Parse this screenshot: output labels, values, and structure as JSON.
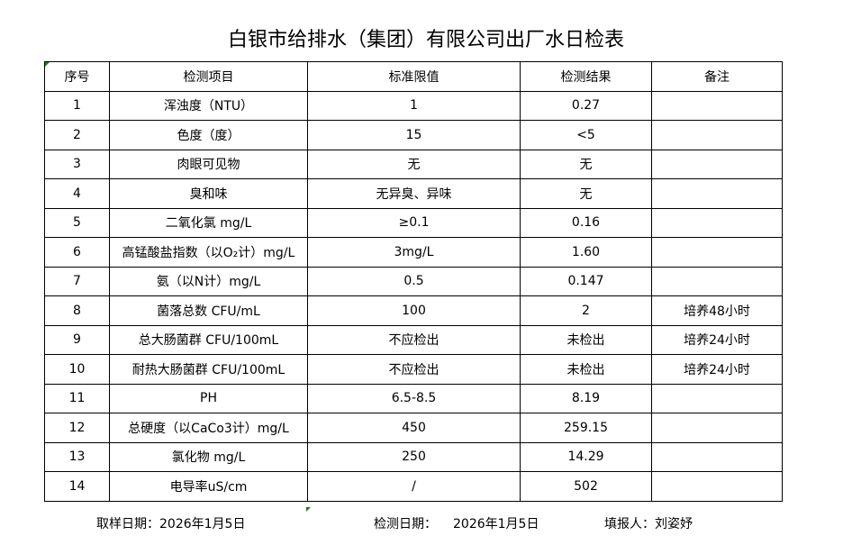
{
  "title": "白银市给排水（集团）有限公司出厂水日检表",
  "headers": [
    "序号",
    "检测项目",
    "标准限值",
    "检测结果",
    "备注"
  ],
  "rows": [
    [
      "1",
      "浑浊度（NTU）",
      "1",
      "0.27",
      ""
    ],
    [
      "2",
      "色度（度）",
      "15",
      "<5",
      ""
    ],
    [
      "3",
      "肉眼可见物",
      "无",
      "无",
      ""
    ],
    [
      "4",
      "臭和味",
      "无异臭、异味",
      "无",
      ""
    ],
    [
      "5",
      "二氧化氯 mg/L",
      "≥0.1",
      "0.16",
      ""
    ],
    [
      "6",
      "高锰酸盐指数（以O₂计）mg/L",
      "3mg/L",
      "1.60",
      ""
    ],
    [
      "7",
      "氨（以N计）mg/L",
      "0.5",
      "0.147",
      ""
    ],
    [
      "8",
      "菌落总数 CFU/mL",
      "100",
      "2",
      "培养48小时"
    ],
    [
      "9",
      "总大肠菌群 CFU/100mL",
      "不应检出",
      "未检出",
      "培养24小时"
    ],
    [
      "10",
      "耐热大肠菌群 CFU/100mL",
      "不应检出",
      "未检出",
      "培养24小时"
    ],
    [
      "11",
      "PH",
      "6.5-8.5",
      "8.19",
      ""
    ],
    [
      "12",
      "总硬度（以CaCo3计）mg/L",
      "450",
      "259.15",
      ""
    ],
    [
      "13",
      "氯化物 mg/L",
      "250",
      "14.29",
      ""
    ],
    [
      "14",
      "电导率uS/cm",
      "/",
      "502",
      ""
    ]
  ],
  "footer": {
    "sampling": "取样日期：2026年1月5日",
    "testing_label": "检测日期：",
    "testing_date": "2026年1月5日",
    "reporter": "填报人：刘姿妤"
  },
  "colors": {
    "corner_marker": "#1a7f1a"
  }
}
